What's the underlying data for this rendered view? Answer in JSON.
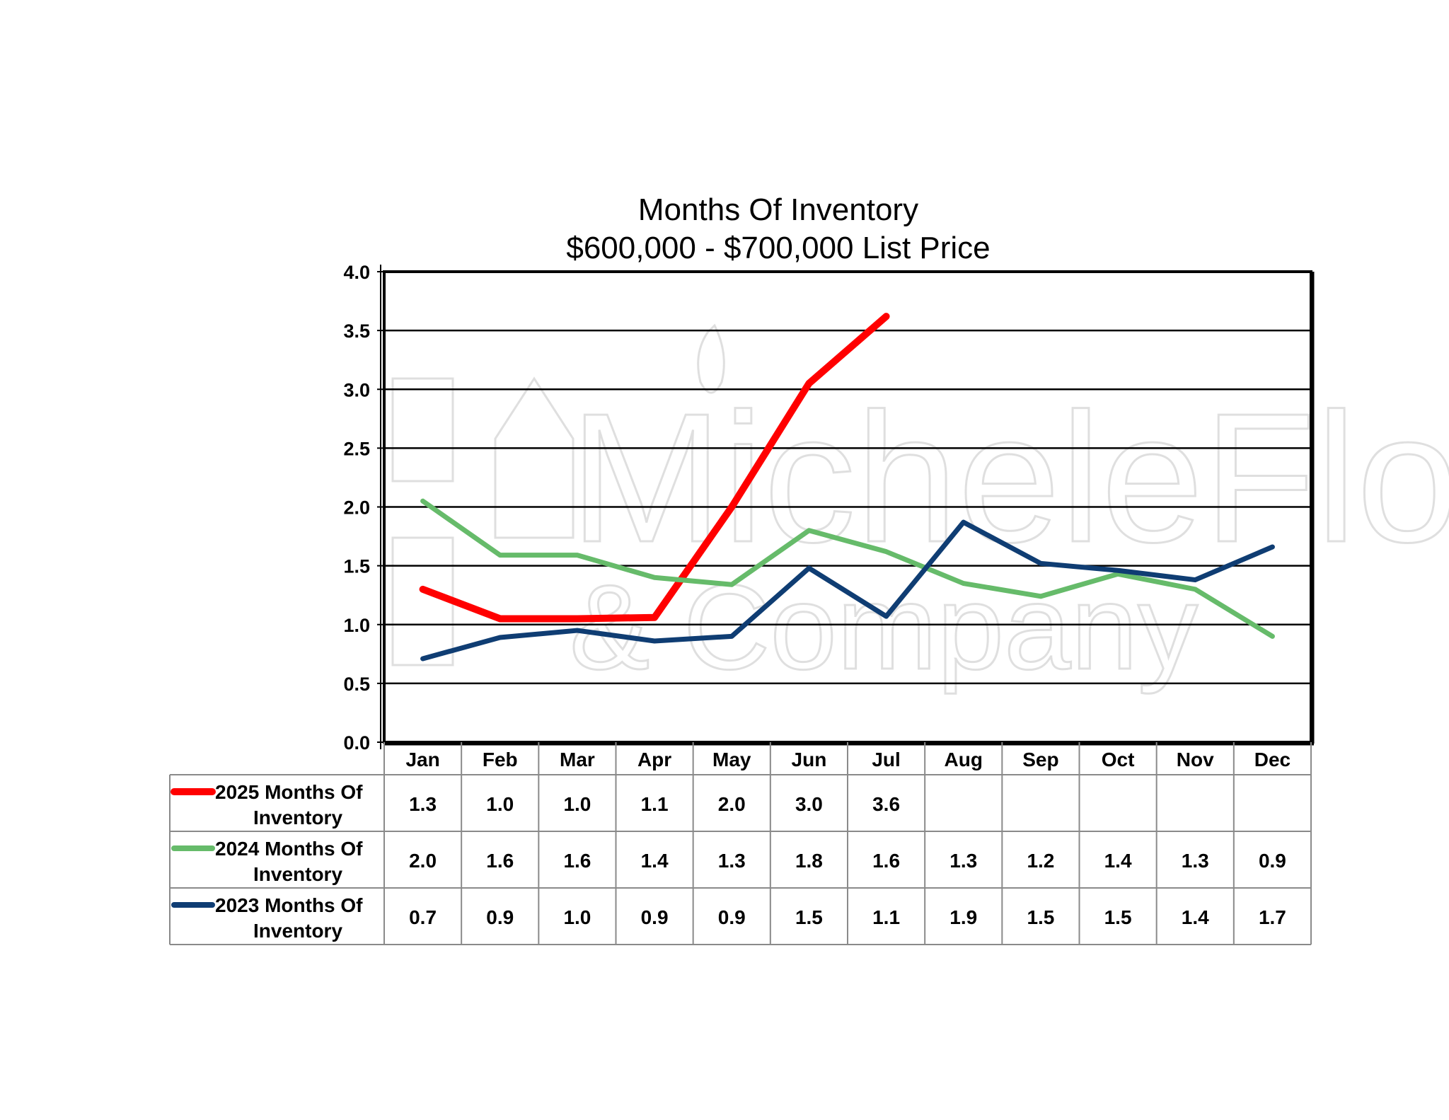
{
  "chart_data": {
    "type": "line",
    "title": "Months Of Inventory",
    "subtitle": "$600,000 - $700,000 List Price",
    "categories": [
      "Jan",
      "Feb",
      "Mar",
      "Apr",
      "May",
      "Jun",
      "Jul",
      "Aug",
      "Sep",
      "Oct",
      "Nov",
      "Dec"
    ],
    "ylim": [
      0,
      4
    ],
    "yticks": [
      "0.0",
      "0.5",
      "1.0",
      "1.5",
      "2.0",
      "2.5",
      "3.0",
      "3.5",
      "4.0"
    ],
    "grid": true,
    "legend": "data-table-below",
    "watermark": "MicheleFlory & Company",
    "series": [
      {
        "name": "2025 Months Of Inventory",
        "name_lines": [
          "2025 Months Of",
          "Inventory"
        ],
        "color": "#ff0000",
        "values": [
          1.3,
          1.05,
          1.05,
          1.06,
          2.0,
          3.05,
          3.62,
          null,
          null,
          null,
          null,
          null
        ],
        "labels": [
          "1.3",
          "1.0",
          "1.0",
          "1.1",
          "2.0",
          "3.0",
          "3.6",
          "",
          "",
          "",
          "",
          ""
        ]
      },
      {
        "name": "2024 Months Of Inventory",
        "name_lines": [
          "2024 Months Of",
          "Inventory"
        ],
        "color": "#66bb6a",
        "values": [
          2.05,
          1.59,
          1.59,
          1.4,
          1.34,
          1.8,
          1.62,
          1.35,
          1.24,
          1.43,
          1.3,
          0.9
        ],
        "labels": [
          "2.0",
          "1.6",
          "1.6",
          "1.4",
          "1.3",
          "1.8",
          "1.6",
          "1.3",
          "1.2",
          "1.4",
          "1.3",
          "0.9"
        ]
      },
      {
        "name": "2023 Months Of Inventory",
        "name_lines": [
          "2023 Months Of",
          "Inventory"
        ],
        "color": "#0f3d73",
        "values": [
          0.71,
          0.89,
          0.95,
          0.86,
          0.9,
          1.48,
          1.07,
          1.87,
          1.52,
          1.46,
          1.38,
          1.66
        ],
        "labels": [
          "0.7",
          "0.9",
          "1.0",
          "0.9",
          "0.9",
          "1.5",
          "1.1",
          "1.9",
          "1.5",
          "1.5",
          "1.4",
          "1.7"
        ]
      }
    ]
  }
}
